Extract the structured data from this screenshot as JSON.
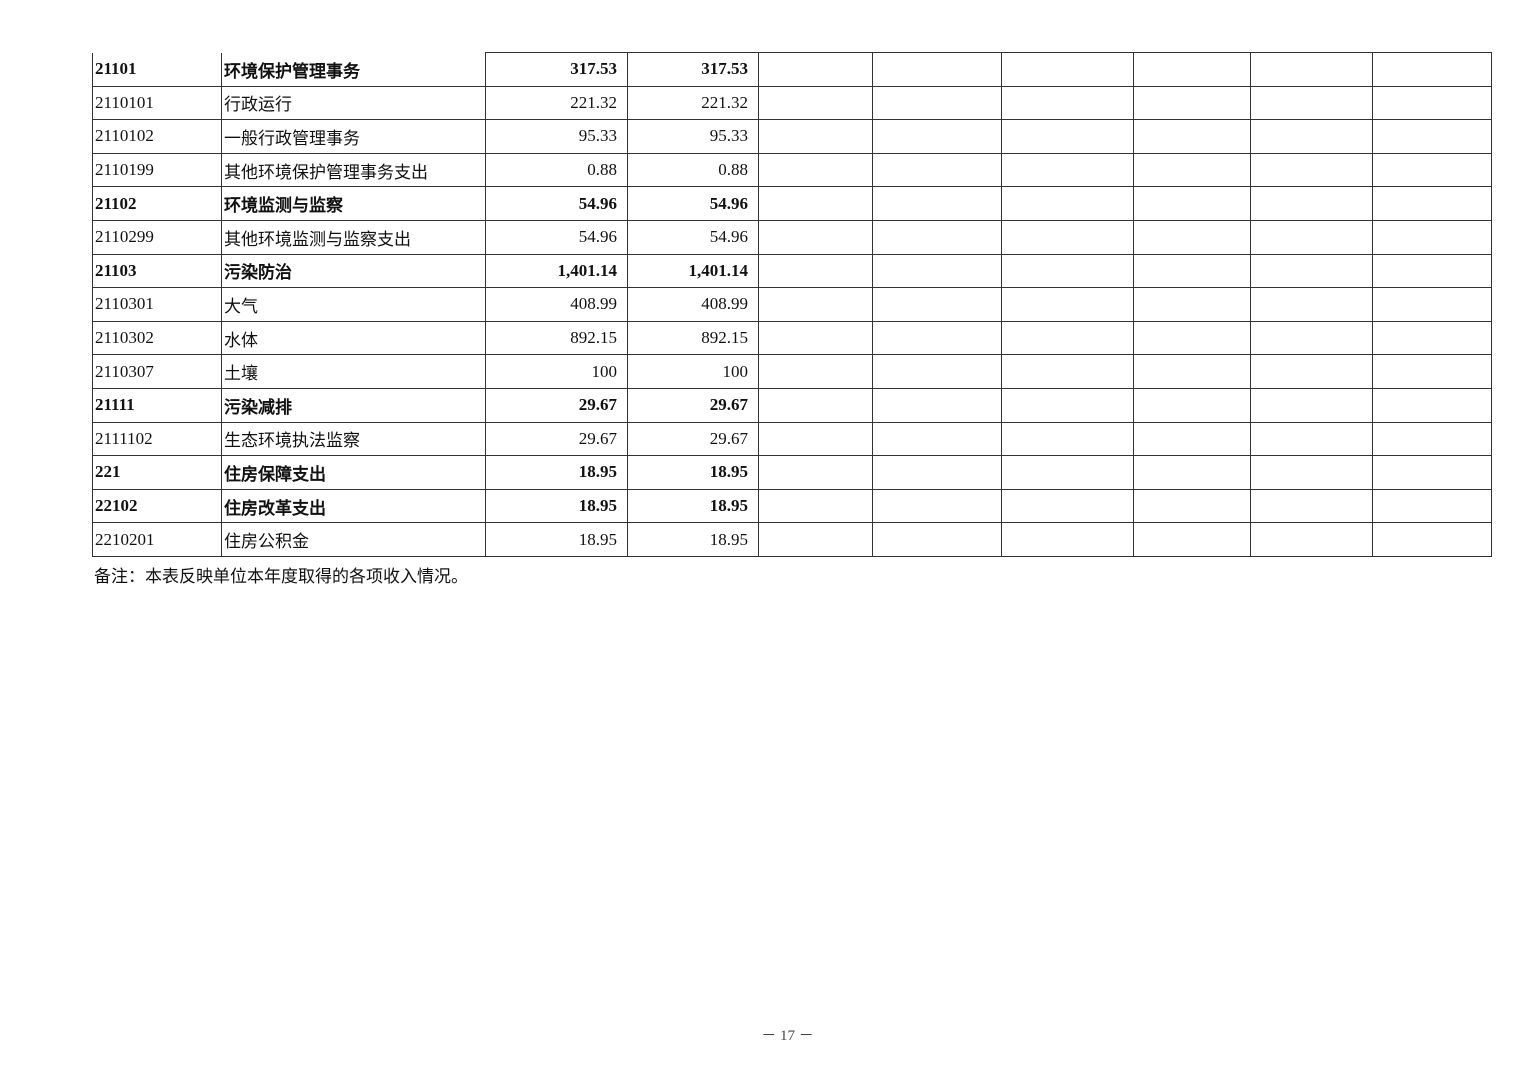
{
  "rows": [
    {
      "code": "21101",
      "name": "环境保护管理事务",
      "v1": "317.53",
      "v2": "317.53",
      "bold": true
    },
    {
      "code": "2110101",
      "name": "行政运行",
      "v1": "221.32",
      "v2": "221.32",
      "bold": false
    },
    {
      "code": "2110102",
      "name": "一般行政管理事务",
      "v1": "95.33",
      "v2": "95.33",
      "bold": false
    },
    {
      "code": "2110199",
      "name": "其他环境保护管理事务支出",
      "v1": "0.88",
      "v2": "0.88",
      "bold": false
    },
    {
      "code": "21102",
      "name": "环境监测与监察",
      "v1": "54.96",
      "v2": "54.96",
      "bold": true
    },
    {
      "code": "2110299",
      "name": "其他环境监测与监察支出",
      "v1": "54.96",
      "v2": "54.96",
      "bold": false
    },
    {
      "code": "21103",
      "name": "污染防治",
      "v1": "1,401.14",
      "v2": "1,401.14",
      "bold": true
    },
    {
      "code": "2110301",
      "name": "大气",
      "v1": "408.99",
      "v2": "408.99",
      "bold": false
    },
    {
      "code": "2110302",
      "name": "水体",
      "v1": "892.15",
      "v2": "892.15",
      "bold": false
    },
    {
      "code": "2110307",
      "name": "土壤",
      "v1": "100",
      "v2": "100",
      "bold": false
    },
    {
      "code": "21111",
      "name": "污染减排",
      "v1": "29.67",
      "v2": "29.67",
      "bold": true
    },
    {
      "code": "2111102",
      "name": "生态环境执法监察",
      "v1": "29.67",
      "v2": "29.67",
      "bold": false
    },
    {
      "code": "221",
      "name": "住房保障支出",
      "v1": "18.95",
      "v2": "18.95",
      "bold": true
    },
    {
      "code": "22102",
      "name": "住房改革支出",
      "v1": "18.95",
      "v2": "18.95",
      "bold": true
    },
    {
      "code": "2210201",
      "name": "住房公积金",
      "v1": "18.95",
      "v2": "18.95",
      "bold": false
    }
  ],
  "note": "备注：本表反映单位本年度取得的各项收入情况。",
  "page_number": "－ 17 －"
}
